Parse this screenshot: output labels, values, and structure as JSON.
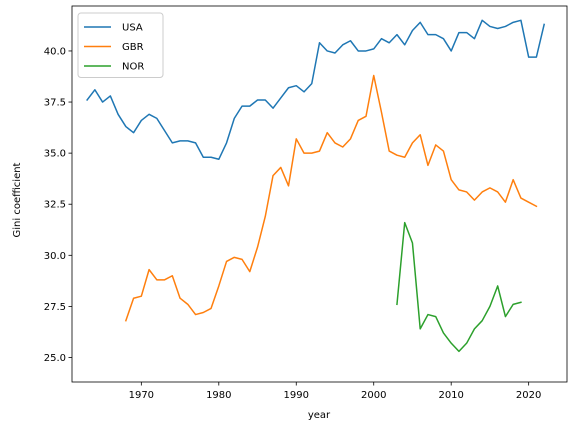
{
  "chart_data": {
    "type": "line",
    "title": "",
    "xlabel": "year",
    "ylabel": "Gini coefficient",
    "xlim": [
      1961.05,
      2024.95
    ],
    "ylim": [
      23.8,
      42.2
    ],
    "xticks": [
      1970,
      1980,
      1990,
      2000,
      2010,
      2020
    ],
    "yticks": [
      25.0,
      27.5,
      30.0,
      32.5,
      35.0,
      37.5,
      40.0
    ],
    "xtick_labels": [
      "1970",
      "1980",
      "1990",
      "2000",
      "2010",
      "2020"
    ],
    "ytick_labels": [
      "25.0",
      "27.5",
      "30.0",
      "32.5",
      "35.0",
      "37.5",
      "40.0"
    ],
    "grid": false,
    "legend_position": "upper-left",
    "series": [
      {
        "name": "USA",
        "color": "#1f77b4",
        "x": [
          1963,
          1964,
          1965,
          1966,
          1967,
          1968,
          1969,
          1970,
          1971,
          1972,
          1973,
          1974,
          1975,
          1976,
          1977,
          1978,
          1979,
          1980,
          1981,
          1982,
          1983,
          1984,
          1985,
          1986,
          1987,
          1988,
          1989,
          1990,
          1991,
          1992,
          1993,
          1994,
          1995,
          1996,
          1997,
          1998,
          1999,
          2000,
          2001,
          2002,
          2003,
          2004,
          2005,
          2006,
          2007,
          2008,
          2009,
          2010,
          2011,
          2012,
          2013,
          2014,
          2015,
          2016,
          2017,
          2018,
          2019,
          2020,
          2021,
          2022
        ],
        "y": [
          37.6,
          38.1,
          37.5,
          37.8,
          36.9,
          36.3,
          36.0,
          36.6,
          36.9,
          36.7,
          36.1,
          35.5,
          35.6,
          35.6,
          35.5,
          34.8,
          34.8,
          34.7,
          35.5,
          36.7,
          37.3,
          37.3,
          37.6,
          37.6,
          37.2,
          37.7,
          38.2,
          38.3,
          38.0,
          38.4,
          40.4,
          40.0,
          39.9,
          40.3,
          40.5,
          40.0,
          40.0,
          40.1,
          40.6,
          40.4,
          40.8,
          40.3,
          41.0,
          41.4,
          40.8,
          40.8,
          40.6,
          40.0,
          40.9,
          40.9,
          40.6,
          41.5,
          41.2,
          41.1,
          41.2,
          41.4,
          41.5,
          39.7,
          39.7,
          41.3
        ]
      },
      {
        "name": "GBR",
        "color": "#ff7f0e",
        "x": [
          1968,
          1969,
          1970,
          1971,
          1972,
          1973,
          1974,
          1975,
          1976,
          1977,
          1978,
          1979,
          1980,
          1981,
          1982,
          1983,
          1984,
          1985,
          1986,
          1987,
          1988,
          1989,
          1990,
          1991,
          1992,
          1993,
          1994,
          1995,
          1996,
          1997,
          1998,
          1999,
          2000,
          2001,
          2002,
          2003,
          2004,
          2005,
          2006,
          2007,
          2008,
          2009,
          2010,
          2011,
          2012,
          2013,
          2014,
          2015,
          2016,
          2017,
          2018,
          2019,
          2020,
          2021
        ],
        "y": [
          26.8,
          27.9,
          28.0,
          29.3,
          28.8,
          28.8,
          29.0,
          27.9,
          27.6,
          27.1,
          27.2,
          27.4,
          28.5,
          29.7,
          29.9,
          29.8,
          29.2,
          30.4,
          31.9,
          33.9,
          34.3,
          33.4,
          35.7,
          35.0,
          35.0,
          35.1,
          36.0,
          35.5,
          35.3,
          35.7,
          36.6,
          36.8,
          38.8,
          37.0,
          35.1,
          34.9,
          34.8,
          35.5,
          35.9,
          34.4,
          35.4,
          35.1,
          33.7,
          33.2,
          33.1,
          32.7,
          33.1,
          33.3,
          33.1,
          32.6,
          33.7,
          32.8,
          32.6,
          32.4
        ]
      },
      {
        "name": "NOR",
        "color": "#2ca02c",
        "x": [
          2003,
          2004,
          2005,
          2006,
          2007,
          2008,
          2009,
          2010,
          2011,
          2012,
          2013,
          2014,
          2015,
          2016,
          2017,
          2018,
          2019
        ],
        "y": [
          27.6,
          31.6,
          30.6,
          26.4,
          27.1,
          27.0,
          26.2,
          25.7,
          25.3,
          25.7,
          26.4,
          26.8,
          27.5,
          28.5,
          27.0,
          27.6,
          27.7
        ]
      }
    ]
  }
}
